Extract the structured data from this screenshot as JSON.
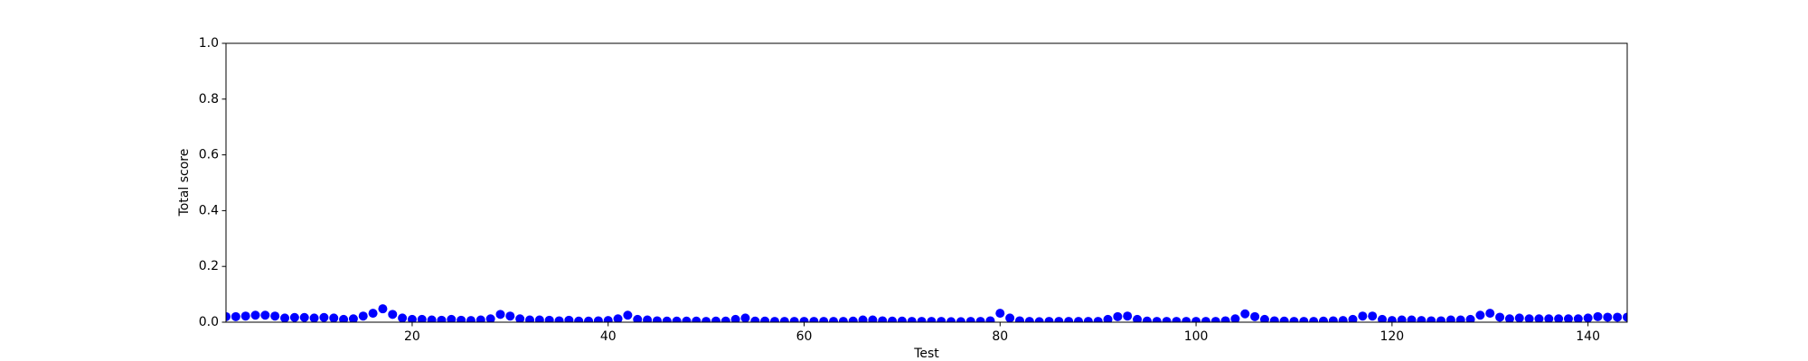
{
  "chart_data": {
    "type": "scatter",
    "x_label": "Test",
    "y_label": "Total score",
    "color": "#0000ff",
    "xlim": [
      1,
      144
    ],
    "ylim": [
      0,
      1
    ],
    "xticks": [
      20,
      40,
      60,
      80,
      100,
      120,
      140
    ],
    "yticks": [
      {
        "value": 0,
        "label": "0.0"
      },
      0.2,
      0.4,
      0.6,
      0.8,
      {
        "value": 1,
        "label": "1.0"
      }
    ],
    "grid": false,
    "x": [
      1,
      2,
      3,
      4,
      5,
      6,
      7,
      8,
      9,
      10,
      11,
      12,
      13,
      14,
      15,
      16,
      17,
      18,
      19,
      20,
      21,
      22,
      23,
      24,
      25,
      26,
      27,
      28,
      29,
      30,
      31,
      32,
      33,
      34,
      35,
      36,
      37,
      38,
      39,
      40,
      41,
      42,
      43,
      44,
      45,
      46,
      47,
      48,
      49,
      50,
      51,
      52,
      53,
      54,
      55,
      56,
      57,
      58,
      59,
      60,
      61,
      62,
      63,
      64,
      65,
      66,
      67,
      68,
      69,
      70,
      71,
      72,
      73,
      74,
      75,
      76,
      77,
      78,
      79,
      80,
      81,
      82,
      83,
      84,
      85,
      86,
      87,
      88,
      89,
      90,
      91,
      92,
      93,
      94,
      95,
      96,
      97,
      98,
      99,
      100,
      101,
      102,
      103,
      104,
      105,
      106,
      107,
      108,
      109,
      110,
      111,
      112,
      113,
      114,
      115,
      116,
      117,
      118,
      119,
      120,
      121,
      122,
      123,
      124,
      125,
      126,
      127,
      128,
      129,
      130,
      131,
      132,
      133,
      134,
      135,
      136,
      137,
      138,
      139,
      140,
      141,
      142,
      143,
      144
    ],
    "values": [
      0.02,
      0.02,
      0.022,
      0.025,
      0.025,
      0.022,
      0.015,
      0.017,
      0.017,
      0.015,
      0.017,
      0.015,
      0.01,
      0.012,
      0.022,
      0.032,
      0.048,
      0.028,
      0.015,
      0.01,
      0.01,
      0.008,
      0.007,
      0.01,
      0.007,
      0.006,
      0.008,
      0.012,
      0.028,
      0.022,
      0.012,
      0.008,
      0.008,
      0.007,
      0.005,
      0.007,
      0.004,
      0.004,
      0.005,
      0.006,
      0.012,
      0.025,
      0.01,
      0.008,
      0.005,
      0.004,
      0.004,
      0.004,
      0.004,
      0.003,
      0.004,
      0.004,
      0.01,
      0.015,
      0.004,
      0.004,
      0.003,
      0.003,
      0.003,
      0.003,
      0.003,
      0.003,
      0.003,
      0.003,
      0.004,
      0.008,
      0.008,
      0.005,
      0.004,
      0.004,
      0.003,
      0.003,
      0.003,
      0.003,
      0.002,
      0.002,
      0.003,
      0.003,
      0.005,
      0.032,
      0.015,
      0.005,
      0.003,
      0.002,
      0.003,
      0.003,
      0.003,
      0.003,
      0.003,
      0.003,
      0.01,
      0.02,
      0.022,
      0.01,
      0.004,
      0.003,
      0.003,
      0.003,
      0.003,
      0.003,
      0.003,
      0.003,
      0.005,
      0.012,
      0.03,
      0.02,
      0.01,
      0.005,
      0.004,
      0.003,
      0.003,
      0.003,
      0.004,
      0.005,
      0.006,
      0.01,
      0.022,
      0.022,
      0.01,
      0.006,
      0.008,
      0.008,
      0.006,
      0.005,
      0.005,
      0.008,
      0.008,
      0.01,
      0.025,
      0.032,
      0.018,
      0.012,
      0.015,
      0.012,
      0.012,
      0.012,
      0.012,
      0.012,
      0.012,
      0.015,
      0.02,
      0.018,
      0.018,
      0.018
    ]
  }
}
